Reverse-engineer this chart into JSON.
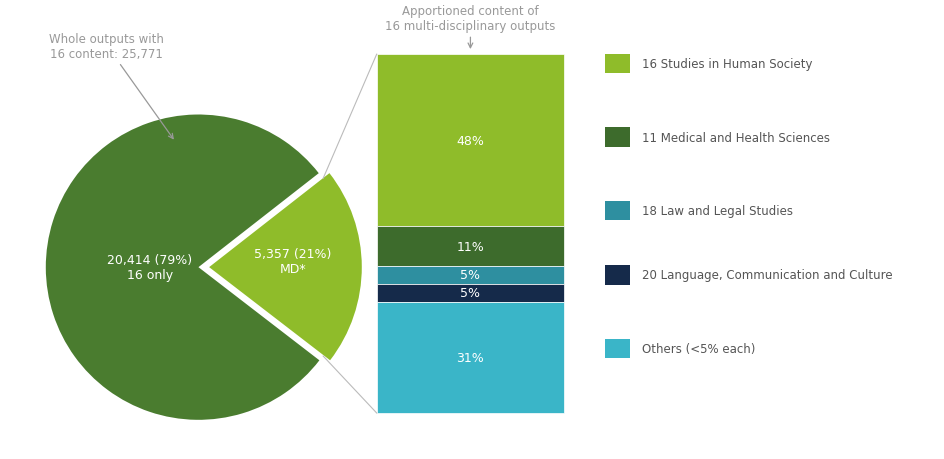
{
  "pie_values": [
    79,
    21
  ],
  "pie_colors": [
    "#4a7c2f",
    "#8fbc2a"
  ],
  "pie_label_16only": "20,414 (79%)\n16 only",
  "pie_label_md": "5,357 (21%)\nMD*",
  "pie_explode": [
    0,
    0.07
  ],
  "pie_startangle": 100,
  "bar_segments_top_to_bottom": [
    48,
    11,
    5,
    5,
    31
  ],
  "bar_colors_top_to_bottom": [
    "#8fbc2a",
    "#3d6b2c",
    "#2e8fa0",
    "#152a4a",
    "#3ab5c8"
  ],
  "bar_labels": [
    "48%",
    "11%",
    "5%",
    "5%",
    "31%"
  ],
  "legend_labels": [
    "16 Studies in Human Society",
    "11 Medical and Health Sciences",
    "18 Law and Legal Studies",
    "20 Language, Communication and Culture",
    "Others (<5% each)"
  ],
  "legend_colors": [
    "#8fbc2a",
    "#3d6b2c",
    "#2e8fa0",
    "#152a4a",
    "#3ab5c8"
  ],
  "annotation_left": "Whole outputs with\n16 content: 25,771",
  "annotation_right": "Apportioned content of\n16 multi-disciplinary outputs",
  "background_color": "#ffffff",
  "text_color": "#555555",
  "bar_text_color": "#ffffff",
  "annotation_color": "#999999",
  "connector_color": "#bbbbbb"
}
